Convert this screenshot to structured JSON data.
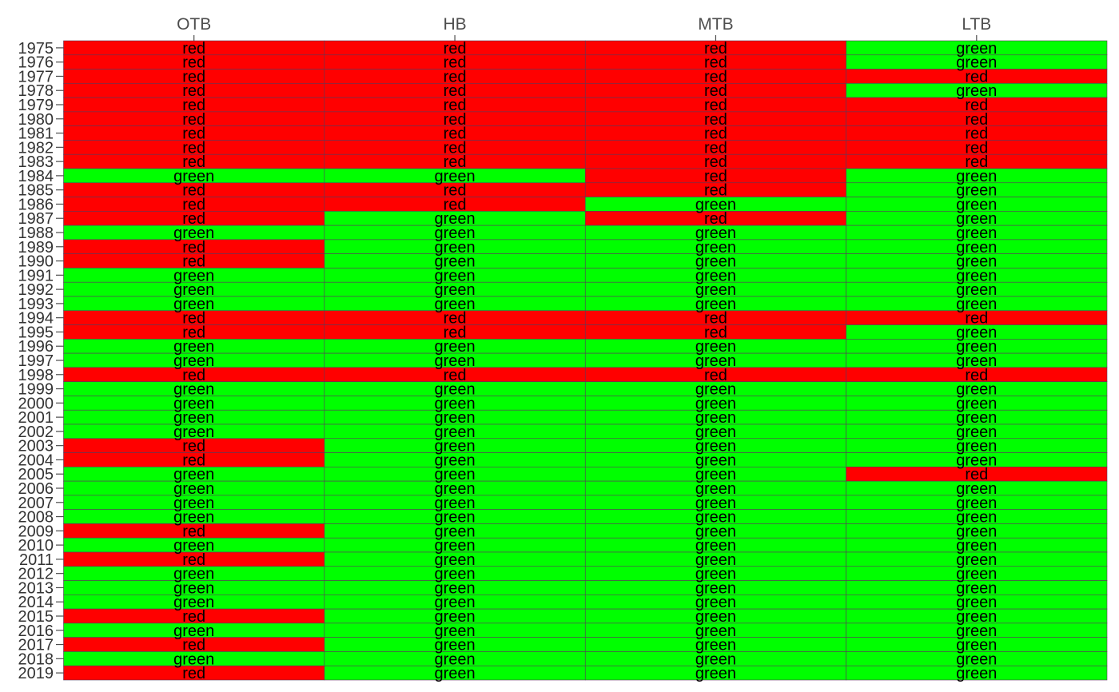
{
  "chart_data": {
    "type": "heatmap",
    "title": "",
    "xlabel": "",
    "ylabel": "",
    "grid": false,
    "legend": "none",
    "x_axis_position": "top",
    "columns": [
      "OTB",
      "HB",
      "MTB",
      "LTB"
    ],
    "rows": [
      "1975",
      "1976",
      "1977",
      "1978",
      "1979",
      "1980",
      "1981",
      "1982",
      "1983",
      "1984",
      "1985",
      "1986",
      "1987",
      "1988",
      "1989",
      "1990",
      "1991",
      "1992",
      "1993",
      "1994",
      "1995",
      "1996",
      "1997",
      "1998",
      "1999",
      "2000",
      "2001",
      "2002",
      "2003",
      "2004",
      "2005",
      "2006",
      "2007",
      "2008",
      "2009",
      "2010",
      "2011",
      "2012",
      "2013",
      "2014",
      "2015",
      "2016",
      "2017",
      "2018",
      "2019"
    ],
    "colors": {
      "red": "#ff0000",
      "green": "#00ff00"
    },
    "values": [
      [
        "red",
        "red",
        "red",
        "green"
      ],
      [
        "red",
        "red",
        "red",
        "green"
      ],
      [
        "red",
        "red",
        "red",
        "red"
      ],
      [
        "red",
        "red",
        "red",
        "green"
      ],
      [
        "red",
        "red",
        "red",
        "red"
      ],
      [
        "red",
        "red",
        "red",
        "red"
      ],
      [
        "red",
        "red",
        "red",
        "red"
      ],
      [
        "red",
        "red",
        "red",
        "red"
      ],
      [
        "red",
        "red",
        "red",
        "red"
      ],
      [
        "green",
        "green",
        "red",
        "green"
      ],
      [
        "red",
        "red",
        "red",
        "green"
      ],
      [
        "red",
        "red",
        "green",
        "green"
      ],
      [
        "red",
        "green",
        "red",
        "green"
      ],
      [
        "green",
        "green",
        "green",
        "green"
      ],
      [
        "red",
        "green",
        "green",
        "green"
      ],
      [
        "red",
        "green",
        "green",
        "green"
      ],
      [
        "green",
        "green",
        "green",
        "green"
      ],
      [
        "green",
        "green",
        "green",
        "green"
      ],
      [
        "green",
        "green",
        "green",
        "green"
      ],
      [
        "red",
        "red",
        "red",
        "red"
      ],
      [
        "red",
        "red",
        "red",
        "green"
      ],
      [
        "green",
        "green",
        "green",
        "green"
      ],
      [
        "green",
        "green",
        "green",
        "green"
      ],
      [
        "red",
        "red",
        "red",
        "red"
      ],
      [
        "green",
        "green",
        "green",
        "green"
      ],
      [
        "green",
        "green",
        "green",
        "green"
      ],
      [
        "green",
        "green",
        "green",
        "green"
      ],
      [
        "green",
        "green",
        "green",
        "green"
      ],
      [
        "red",
        "green",
        "green",
        "green"
      ],
      [
        "red",
        "green",
        "green",
        "green"
      ],
      [
        "green",
        "green",
        "green",
        "red"
      ],
      [
        "green",
        "green",
        "green",
        "green"
      ],
      [
        "green",
        "green",
        "green",
        "green"
      ],
      [
        "green",
        "green",
        "green",
        "green"
      ],
      [
        "red",
        "green",
        "green",
        "green"
      ],
      [
        "green",
        "green",
        "green",
        "green"
      ],
      [
        "red",
        "green",
        "green",
        "green"
      ],
      [
        "green",
        "green",
        "green",
        "green"
      ],
      [
        "green",
        "green",
        "green",
        "green"
      ],
      [
        "green",
        "green",
        "green",
        "green"
      ],
      [
        "red",
        "green",
        "green",
        "green"
      ],
      [
        "green",
        "green",
        "green",
        "green"
      ],
      [
        "red",
        "green",
        "green",
        "green"
      ],
      [
        "green",
        "green",
        "green",
        "green"
      ],
      [
        "red",
        "green",
        "green",
        "green"
      ]
    ]
  }
}
